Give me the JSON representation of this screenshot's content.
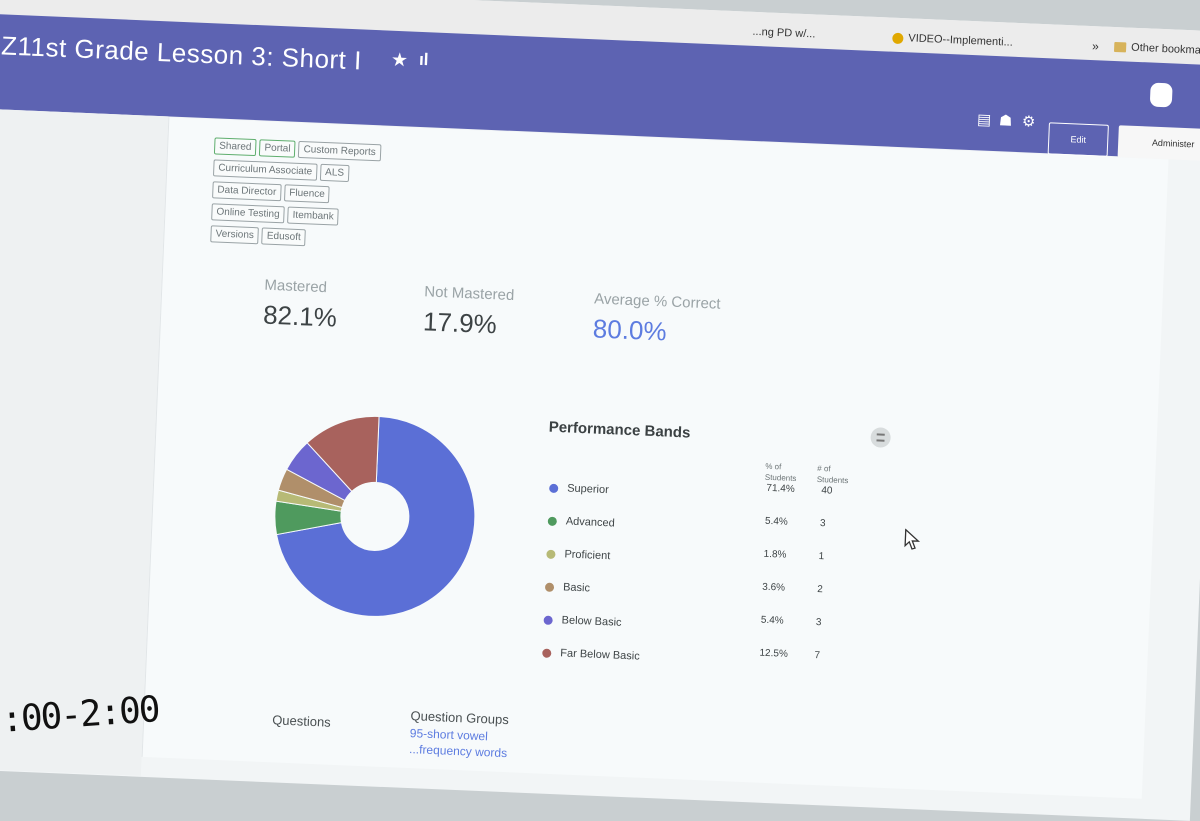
{
  "browser": {
    "bookmarks": [
      {
        "label": "...ng PD w/..."
      },
      {
        "label": "VIDEO--Implementi..."
      },
      {
        "label": "Other bookma"
      }
    ],
    "overflow_icon": "double-chevron-right-icon"
  },
  "header": {
    "title": "Z11st Grade Lesson 3: Short I",
    "star_icon": "star-icon",
    "chart_icon": "bar-chart-icon",
    "edit_label": "Edit",
    "administer_label": "Administer",
    "icons": [
      "document-icon",
      "add-user-icon",
      "gear-icon"
    ]
  },
  "tags": {
    "row1": [
      "Shared",
      "Portal",
      "Custom Reports"
    ],
    "row2": [
      "Curriculum Associate",
      "ALS"
    ],
    "row3": [
      "Data Director",
      "Fluence"
    ],
    "row4": [
      "Online Testing",
      "Itembank"
    ],
    "row5": [
      "Versions",
      "Edusoft"
    ]
  },
  "stats": {
    "mastered_label": "Mastered",
    "mastered_value": "82.1%",
    "not_mastered_label": "Not Mastered",
    "not_mastered_value": "17.9%",
    "avg_label": "Average % Correct",
    "avg_value": "80.0%"
  },
  "performance": {
    "title": "Performance Bands",
    "col_pct": "% of Students",
    "col_count": "# of Students",
    "bands": [
      {
        "name": "Superior",
        "pct": "71.4%",
        "count": "40",
        "color": "#5b6fd6"
      },
      {
        "name": "Advanced",
        "pct": "5.4%",
        "count": "3",
        "color": "#4f9a5e"
      },
      {
        "name": "Proficient",
        "pct": "1.8%",
        "count": "1",
        "color": "#b7ba76"
      },
      {
        "name": "Basic",
        "pct": "3.6%",
        "count": "2",
        "color": "#b08f6a"
      },
      {
        "name": "Below Basic",
        "pct": "5.4%",
        "count": "3",
        "color": "#6c66cf"
      },
      {
        "name": "Far Below Basic",
        "pct": "12.5%",
        "count": "7",
        "color": "#a8625d"
      }
    ]
  },
  "questions": {
    "questions_label": "Questions",
    "groups_label": "Question Groups",
    "group_link": "95-short vowel",
    "group_link2": "...frequency words"
  },
  "overlay": {
    "timer": ":00-2:00"
  }
}
